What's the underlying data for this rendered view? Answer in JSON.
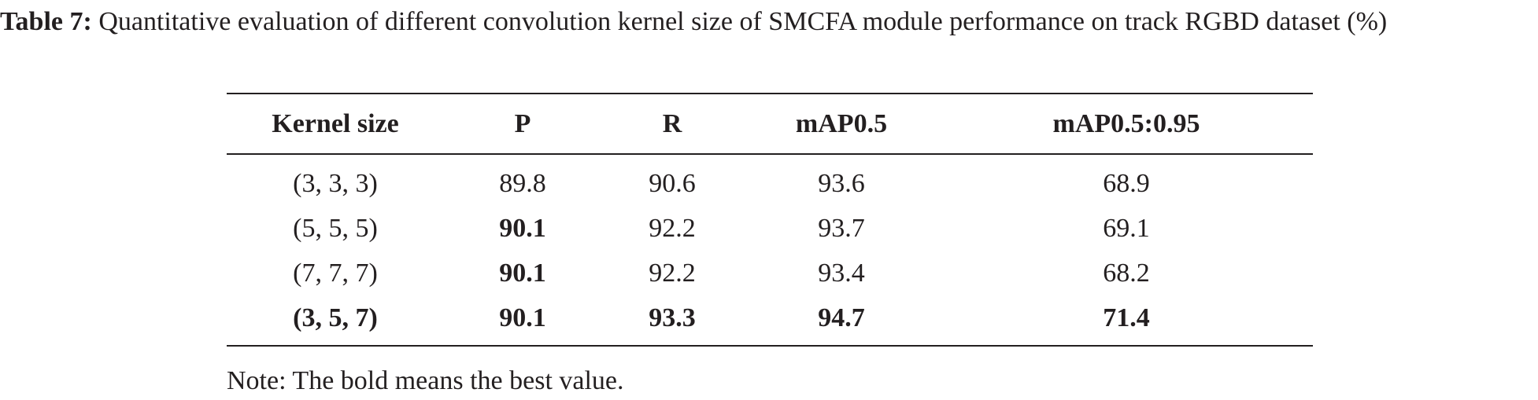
{
  "caption": {
    "label": "Table 7:",
    "text": "Quantitative evaluation of different convolution kernel size of SMCFA module performance on track RGBD dataset (%)"
  },
  "table": {
    "headers": [
      "Kernel size",
      "P",
      "R",
      "mAP0.5",
      "mAP0.5:0.95"
    ],
    "rows": [
      [
        "(3, 3, 3)",
        "89.8",
        "90.6",
        "93.6",
        "68.9"
      ],
      [
        "(5, 5, 5)",
        "90.1",
        "92.2",
        "93.7",
        "69.1"
      ],
      [
        "(7, 7, 7)",
        "90.1",
        "92.2",
        "93.4",
        "68.2"
      ],
      [
        "(3, 5, 7)",
        "90.1",
        "93.3",
        "94.7",
        "71.4"
      ]
    ]
  },
  "note": "Note: The bold means the best value."
}
